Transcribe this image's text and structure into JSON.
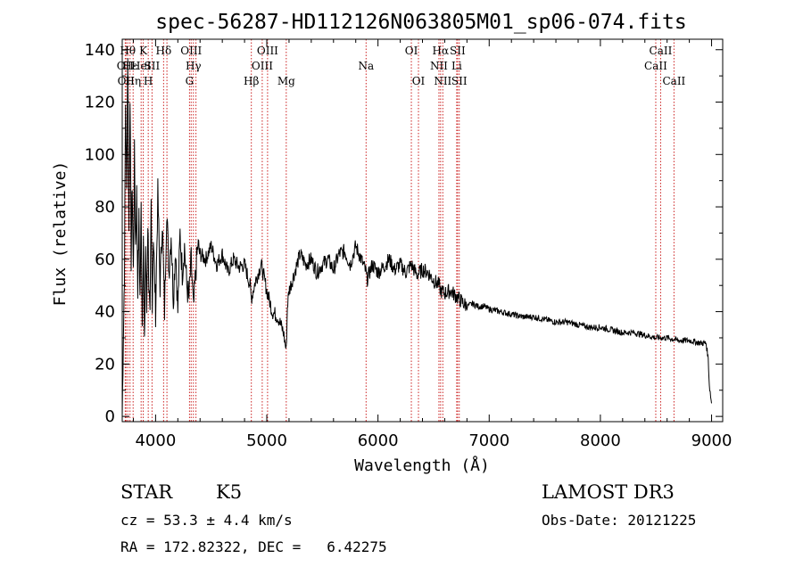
{
  "chart_data": {
    "type": "line",
    "title": "spec-56287-HD112126N063805M01_sp06-074.fits",
    "xlabel": "Wavelength (Å)",
    "ylabel": "Flux (relative)",
    "xlim": [
      3700,
      9100
    ],
    "ylim": [
      -2,
      144
    ],
    "x_ticks": [
      4000,
      5000,
      6000,
      7000,
      8000,
      9000
    ],
    "y_ticks": [
      0,
      20,
      40,
      60,
      80,
      100,
      120,
      140
    ],
    "grid": false,
    "series": [
      {
        "name": "flux",
        "x": [
          3700,
          3710,
          3720,
          3730,
          3740,
          3750,
          3760,
          3770,
          3780,
          3790,
          3800,
          3810,
          3820,
          3830,
          3840,
          3850,
          3860,
          3870,
          3880,
          3890,
          3900,
          3910,
          3920,
          3930,
          3940,
          3950,
          3960,
          3970,
          3980,
          3990,
          4000,
          4020,
          4040,
          4060,
          4080,
          4100,
          4120,
          4140,
          4160,
          4180,
          4200,
          4220,
          4240,
          4260,
          4280,
          4300,
          4320,
          4340,
          4360,
          4380,
          4400,
          4450,
          4500,
          4550,
          4600,
          4650,
          4700,
          4750,
          4800,
          4850,
          4861,
          4900,
          4950,
          5000,
          5050,
          5100,
          5150,
          5175,
          5185,
          5200,
          5250,
          5300,
          5350,
          5400,
          5450,
          5500,
          5550,
          5600,
          5650,
          5700,
          5750,
          5800,
          5850,
          5893,
          5900,
          5950,
          6000,
          6050,
          6100,
          6150,
          6200,
          6250,
          6300,
          6350,
          6400,
          6450,
          6500,
          6550,
          6563,
          6600,
          6650,
          6700,
          6750,
          6800,
          6850,
          6900,
          6950,
          7000,
          7100,
          7200,
          7300,
          7400,
          7500,
          7600,
          7700,
          7800,
          7900,
          8000,
          8100,
          8200,
          8300,
          8400,
          8500,
          8600,
          8700,
          8800,
          8900,
          8950,
          8960,
          8970,
          8980,
          9000
        ],
        "values": [
          0,
          30,
          55,
          120,
          85,
          140,
          70,
          125,
          60,
          90,
          55,
          100,
          65,
          85,
          50,
          75,
          45,
          80,
          35,
          70,
          25,
          65,
          40,
          75,
          50,
          35,
          80,
          45,
          70,
          55,
          40,
          85,
          50,
          75,
          40,
          80,
          55,
          70,
          45,
          65,
          40,
          70,
          55,
          65,
          50,
          45,
          60,
          40,
          55,
          65,
          62,
          60,
          65,
          58,
          62,
          55,
          60,
          57,
          58,
          50,
          45,
          52,
          58,
          48,
          40,
          38,
          32,
          25,
          42,
          48,
          55,
          62,
          58,
          60,
          55,
          58,
          60,
          56,
          62,
          63,
          58,
          65,
          60,
          55,
          52,
          58,
          55,
          57,
          60,
          56,
          58,
          55,
          58,
          54,
          56,
          55,
          52,
          50,
          48,
          47,
          48,
          46,
          44,
          42,
          43,
          42,
          42,
          41,
          40,
          39,
          38,
          38,
          37,
          36,
          36,
          35,
          34,
          34,
          33,
          32,
          32,
          31,
          30,
          30,
          29,
          29,
          28,
          28,
          25,
          22,
          12,
          5
        ]
      }
    ],
    "line_markers": [
      {
        "x": 3727,
        "label": "OII",
        "row": 2
      },
      {
        "x": 3734,
        "label": "OII",
        "row": 3
      },
      {
        "x": 3750,
        "label": "Hθ",
        "row": 1
      },
      {
        "x": 3770,
        "label": "Hε",
        "row": 2
      },
      {
        "x": 3798,
        "label": "Hη",
        "row": 3
      },
      {
        "x": 3870,
        "label": "HeI",
        "row": 2
      },
      {
        "x": 3889,
        "label": "K",
        "row": 1
      },
      {
        "x": 3934,
        "label": "H",
        "row": 3
      },
      {
        "x": 3968,
        "label": "SII",
        "row": 2
      },
      {
        "x": 4072,
        "label": "Hδ",
        "row": 1
      },
      {
        "x": 4102,
        "label": "",
        "row": 0
      },
      {
        "x": 4305,
        "label": "G",
        "row": 3
      },
      {
        "x": 4320,
        "label": "OIII",
        "row": 1
      },
      {
        "x": 4340,
        "label": "Hγ",
        "row": 2
      },
      {
        "x": 4363,
        "label": "",
        "row": 0
      },
      {
        "x": 4861,
        "label": "Hβ",
        "row": 3
      },
      {
        "x": 4959,
        "label": "OIII",
        "row": 2
      },
      {
        "x": 5007,
        "label": "OIII",
        "row": 1
      },
      {
        "x": 5175,
        "label": "Mg",
        "row": 3
      },
      {
        "x": 5893,
        "label": "Na",
        "row": 2
      },
      {
        "x": 6300,
        "label": "OI",
        "row": 1
      },
      {
        "x": 6364,
        "label": "OI",
        "row": 3
      },
      {
        "x": 6548,
        "label": "NII",
        "row": 2
      },
      {
        "x": 6563,
        "label": "Hα",
        "row": 1
      },
      {
        "x": 6583,
        "label": "NII",
        "row": 3
      },
      {
        "x": 6708,
        "label": "Li",
        "row": 2
      },
      {
        "x": 6716,
        "label": "SII",
        "row": 1
      },
      {
        "x": 6731,
        "label": "SII",
        "row": 3
      },
      {
        "x": 8498,
        "label": "CaII",
        "row": 2
      },
      {
        "x": 8542,
        "label": "CaII",
        "row": 1
      },
      {
        "x": 8662,
        "label": "CaII",
        "row": 3
      }
    ]
  },
  "info": {
    "class_label": "STAR",
    "subclass": "K5",
    "survey": "LAMOST DR3",
    "cz": "cz = 53.3 ± 4.4 km/s",
    "obs_date": "Obs-Date: 20121225",
    "coords": "RA = 172.82322, DEC =   6.42275"
  },
  "colors": {
    "line_marker": "#cc2222",
    "spectrum": "#000000",
    "axes": "#000000"
  }
}
